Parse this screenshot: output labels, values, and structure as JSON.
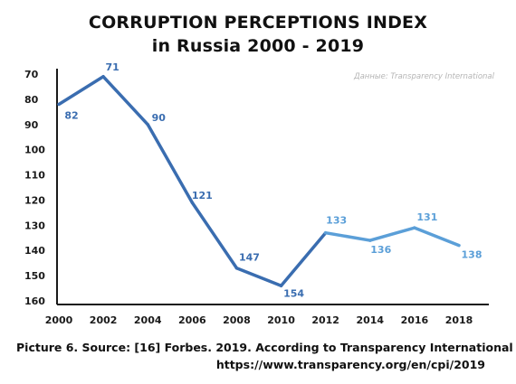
{
  "chart_data": {
    "type": "line",
    "title": "CORRUPTION PERCEPTIONS INDEX",
    "subtitle": "in Russia 2000 - 2019",
    "watermark": "Данные: Transparency International",
    "x": [
      2000,
      2002,
      2004,
      2006,
      2008,
      2010,
      2012,
      2014,
      2016,
      2018
    ],
    "xticks": [
      "2000",
      "2002",
      "2004",
      "2006",
      "2008",
      "2010",
      "2012",
      "2014",
      "2016",
      "2018"
    ],
    "yticks": [
      "70",
      "80",
      "90",
      "100",
      "110",
      "120",
      "130",
      "140",
      "150",
      "160"
    ],
    "ylim": [
      160,
      70
    ],
    "y_inverted": true,
    "series": [
      {
        "values": [
          82,
          71,
          90,
          121,
          147,
          154,
          133,
          136,
          131,
          138
        ],
        "labels": [
          "82",
          "71",
          "90",
          "121",
          "147",
          "154",
          "133",
          "136",
          "131",
          "138"
        ],
        "color_dark": "#3a6db0",
        "color_light": "#5b9fd8"
      }
    ],
    "grid": false,
    "legend": "none"
  },
  "caption": {
    "line1": "Picture 6. Source: [16] Forbes. 2019. According to Transparency International",
    "line2": "https://www.transparency.org/en/cpi/2019"
  }
}
